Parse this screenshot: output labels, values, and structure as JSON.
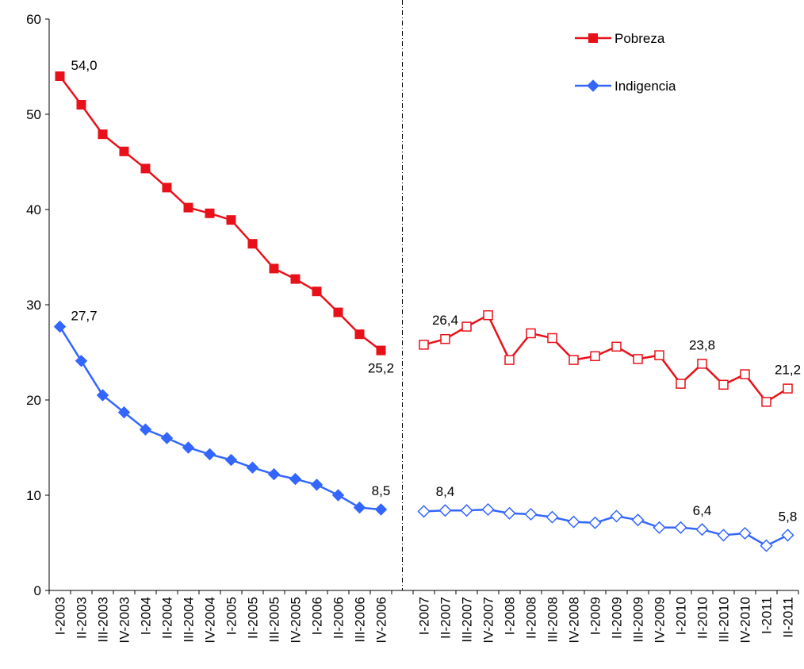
{
  "chart_data": {
    "type": "line",
    "categories": [
      "I-2003",
      "II-2003",
      "III-2003",
      "IV-2003",
      "I-2004",
      "II-2004",
      "III-2004",
      "IV-2004",
      "I-2005",
      "II-2005",
      "III-2005",
      "IV-2005",
      "I-2006",
      "II-2006",
      "III-2006",
      "IV-2006",
      null,
      "I-2007",
      "II-2007",
      "III-2007",
      "IV-2007",
      "I-2008",
      "II-2008",
      "III-2008",
      "IV-2008",
      "I-2009",
      "II-2009",
      "III-2009",
      "IV-2009",
      "I-2010",
      "II-2010",
      "III-2010",
      "IV-2010",
      "I-2011",
      "II-2011"
    ],
    "series": [
      {
        "name": "Pobreza",
        "color": "#e8111a",
        "marker": "square",
        "values": [
          54.0,
          51.0,
          47.9,
          46.1,
          44.3,
          42.3,
          40.2,
          39.6,
          38.9,
          36.4,
          33.8,
          32.7,
          31.4,
          29.2,
          26.9,
          25.2,
          null,
          25.8,
          26.4,
          27.7,
          28.9,
          24.2,
          27.0,
          26.5,
          24.2,
          24.6,
          25.6,
          24.3,
          24.7,
          21.7,
          23.8,
          21.6,
          22.7,
          19.8,
          21.2
        ],
        "value_labels": [
          "54,0",
          null,
          null,
          null,
          null,
          null,
          null,
          null,
          null,
          null,
          null,
          null,
          null,
          null,
          null,
          "25,2",
          null,
          null,
          "26,4",
          null,
          null,
          null,
          null,
          null,
          null,
          null,
          null,
          null,
          null,
          null,
          "23,8",
          null,
          null,
          null,
          "21,2"
        ]
      },
      {
        "name": "Indigencia",
        "color": "#3366ff",
        "marker": "diamond",
        "values": [
          27.7,
          24.1,
          20.5,
          18.7,
          16.9,
          16.0,
          15.0,
          14.3,
          13.7,
          12.9,
          12.2,
          11.7,
          11.1,
          10.0,
          8.7,
          8.5,
          null,
          8.3,
          8.4,
          8.4,
          8.5,
          8.1,
          8.0,
          7.7,
          7.2,
          7.1,
          7.8,
          7.4,
          6.6,
          6.6,
          6.4,
          5.8,
          6.0,
          4.7,
          5.8
        ],
        "value_labels": [
          "27,7",
          null,
          null,
          null,
          null,
          null,
          null,
          null,
          null,
          null,
          null,
          null,
          null,
          null,
          null,
          "8,5",
          null,
          null,
          "8,4",
          null,
          null,
          null,
          null,
          null,
          null,
          null,
          null,
          null,
          null,
          null,
          "6,4",
          null,
          null,
          null,
          "5,8"
        ]
      }
    ],
    "ylim": [
      0,
      60
    ],
    "yticks": [
      0,
      10,
      20,
      30,
      40,
      50,
      60
    ],
    "open_markers_after_gap": true,
    "legend": "top-right"
  }
}
